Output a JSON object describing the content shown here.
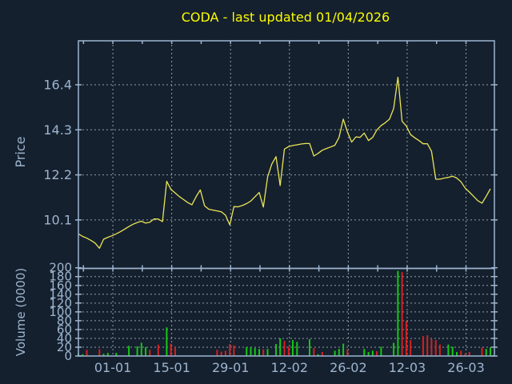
{
  "title": {
    "text": "CODA - last updated 01/04/2026"
  },
  "colors": {
    "background": "#15202e",
    "frame": "#9db5d0",
    "grid": "#aab3bc",
    "title": "#fcfc00",
    "tick_label": "#9db5d0",
    "price_line": "#e9e556",
    "volume_up": "#15c615",
    "volume_down": "#d42020"
  },
  "x_axis": {
    "major_ticks": [
      {
        "label": "01-01",
        "day": 8.2
      },
      {
        "label": "15-01",
        "day": 22.2
      },
      {
        "label": "29-01",
        "day": 36.2
      },
      {
        "label": "12-02",
        "day": 50.2
      },
      {
        "label": "26-02",
        "day": 64.2
      },
      {
        "label": "12-03",
        "day": 78.2
      },
      {
        "label": "26-03",
        "day": 92.2
      }
    ],
    "minor_tick_days": [
      1.2,
      15.2,
      29.2,
      43.2,
      57.2,
      71.2,
      85.2
    ]
  },
  "chart_data": [
    {
      "type": "line",
      "name": "price",
      "ylabel": "Price",
      "legend_position": "none",
      "grid": true,
      "yticks": [
        16.4,
        14.3,
        12.2,
        10.1
      ],
      "ylim": [
        7.84,
        18.45
      ],
      "n_days": 98,
      "values": [
        9.45,
        9.33,
        9.25,
        9.14,
        9.02,
        8.78,
        9.2,
        9.29,
        9.36,
        9.45,
        9.55,
        9.67,
        9.79,
        9.9,
        9.98,
        10.04,
        9.95,
        9.99,
        10.15,
        10.14,
        10.02,
        11.9,
        11.52,
        11.36,
        11.19,
        11.05,
        10.91,
        10.81,
        11.18,
        11.5,
        10.76,
        10.6,
        10.56,
        10.52,
        10.48,
        10.32,
        9.87,
        10.72,
        10.71,
        10.77,
        10.86,
        10.98,
        11.18,
        11.38,
        10.7,
        12.1,
        12.7,
        13.05,
        11.7,
        13.4,
        13.52,
        13.57,
        13.6,
        13.64,
        13.66,
        13.66,
        13.08,
        13.2,
        13.35,
        13.43,
        13.5,
        13.58,
        13.95,
        14.8,
        14.2,
        13.73,
        13.97,
        13.95,
        14.15,
        13.8,
        13.95,
        14.3,
        14.5,
        14.63,
        14.8,
        15.3,
        16.75,
        14.7,
        14.48,
        14.08,
        13.93,
        13.8,
        13.65,
        13.65,
        13.3,
        12.0,
        12.0,
        12.05,
        12.08,
        12.14,
        12.05,
        11.88,
        11.58,
        11.4,
        11.2,
        11.0,
        10.88,
        11.2,
        11.55
      ]
    },
    {
      "type": "bar",
      "name": "volume",
      "ylabel": "Volume (0000)",
      "grid": true,
      "yticks": [
        200,
        180,
        160,
        140,
        120,
        100,
        80,
        60,
        40,
        20,
        0
      ],
      "ylim": [
        0,
        200
      ],
      "bars": [
        [
          0,
          5,
          "g"
        ],
        [
          1,
          4,
          "g"
        ],
        [
          2,
          14,
          "r"
        ],
        [
          5,
          15,
          "r"
        ],
        [
          6,
          5,
          "g"
        ],
        [
          7,
          7,
          "g"
        ],
        [
          9,
          7,
          "g"
        ],
        [
          12,
          23,
          "g"
        ],
        [
          14,
          22,
          "g"
        ],
        [
          15,
          30,
          "g"
        ],
        [
          16,
          20,
          "g"
        ],
        [
          17,
          14,
          "r"
        ],
        [
          19,
          26,
          "r"
        ],
        [
          21,
          65,
          "g"
        ],
        [
          22,
          28,
          "r"
        ],
        [
          23,
          20,
          "r"
        ],
        [
          33,
          14,
          "r"
        ],
        [
          34,
          10,
          "r"
        ],
        [
          35,
          12,
          "r"
        ],
        [
          36,
          27,
          "r"
        ],
        [
          37,
          24,
          "r"
        ],
        [
          40,
          20,
          "g"
        ],
        [
          41,
          20,
          "g"
        ],
        [
          42,
          18,
          "g"
        ],
        [
          43,
          16,
          "g"
        ],
        [
          44,
          15,
          "r"
        ],
        [
          45,
          16,
          "g"
        ],
        [
          47,
          27,
          "g"
        ],
        [
          48,
          40,
          "g"
        ],
        [
          49,
          34,
          "r"
        ],
        [
          50,
          21,
          "r"
        ],
        [
          51,
          36,
          "g"
        ],
        [
          52,
          32,
          "g"
        ],
        [
          55,
          38,
          "g"
        ],
        [
          56,
          18,
          "r"
        ],
        [
          57,
          4,
          "g"
        ],
        [
          58,
          9,
          "r"
        ],
        [
          61,
          12,
          "g"
        ],
        [
          62,
          16,
          "g"
        ],
        [
          63,
          28,
          "g"
        ],
        [
          64,
          15,
          "r"
        ],
        [
          68,
          16,
          "g"
        ],
        [
          69,
          9,
          "g"
        ],
        [
          70,
          12,
          "g"
        ],
        [
          71,
          11,
          "r"
        ],
        [
          72,
          21,
          "g"
        ],
        [
          75,
          30,
          "g"
        ],
        [
          76,
          193,
          "g"
        ],
        [
          77,
          190,
          "r"
        ],
        [
          78,
          79,
          "r"
        ],
        [
          79,
          36,
          "r"
        ],
        [
          82,
          45,
          "r"
        ],
        [
          83,
          47,
          "r"
        ],
        [
          84,
          38,
          "r"
        ],
        [
          85,
          36,
          "r"
        ],
        [
          86,
          26,
          "r"
        ],
        [
          88,
          26,
          "g"
        ],
        [
          89,
          21,
          "g"
        ],
        [
          90,
          9,
          "g"
        ],
        [
          91,
          12,
          "r"
        ],
        [
          92,
          5,
          "r"
        ],
        [
          93,
          9,
          "r"
        ],
        [
          96,
          19,
          "r"
        ],
        [
          97,
          16,
          "g"
        ],
        [
          98,
          19,
          "g"
        ]
      ]
    }
  ]
}
